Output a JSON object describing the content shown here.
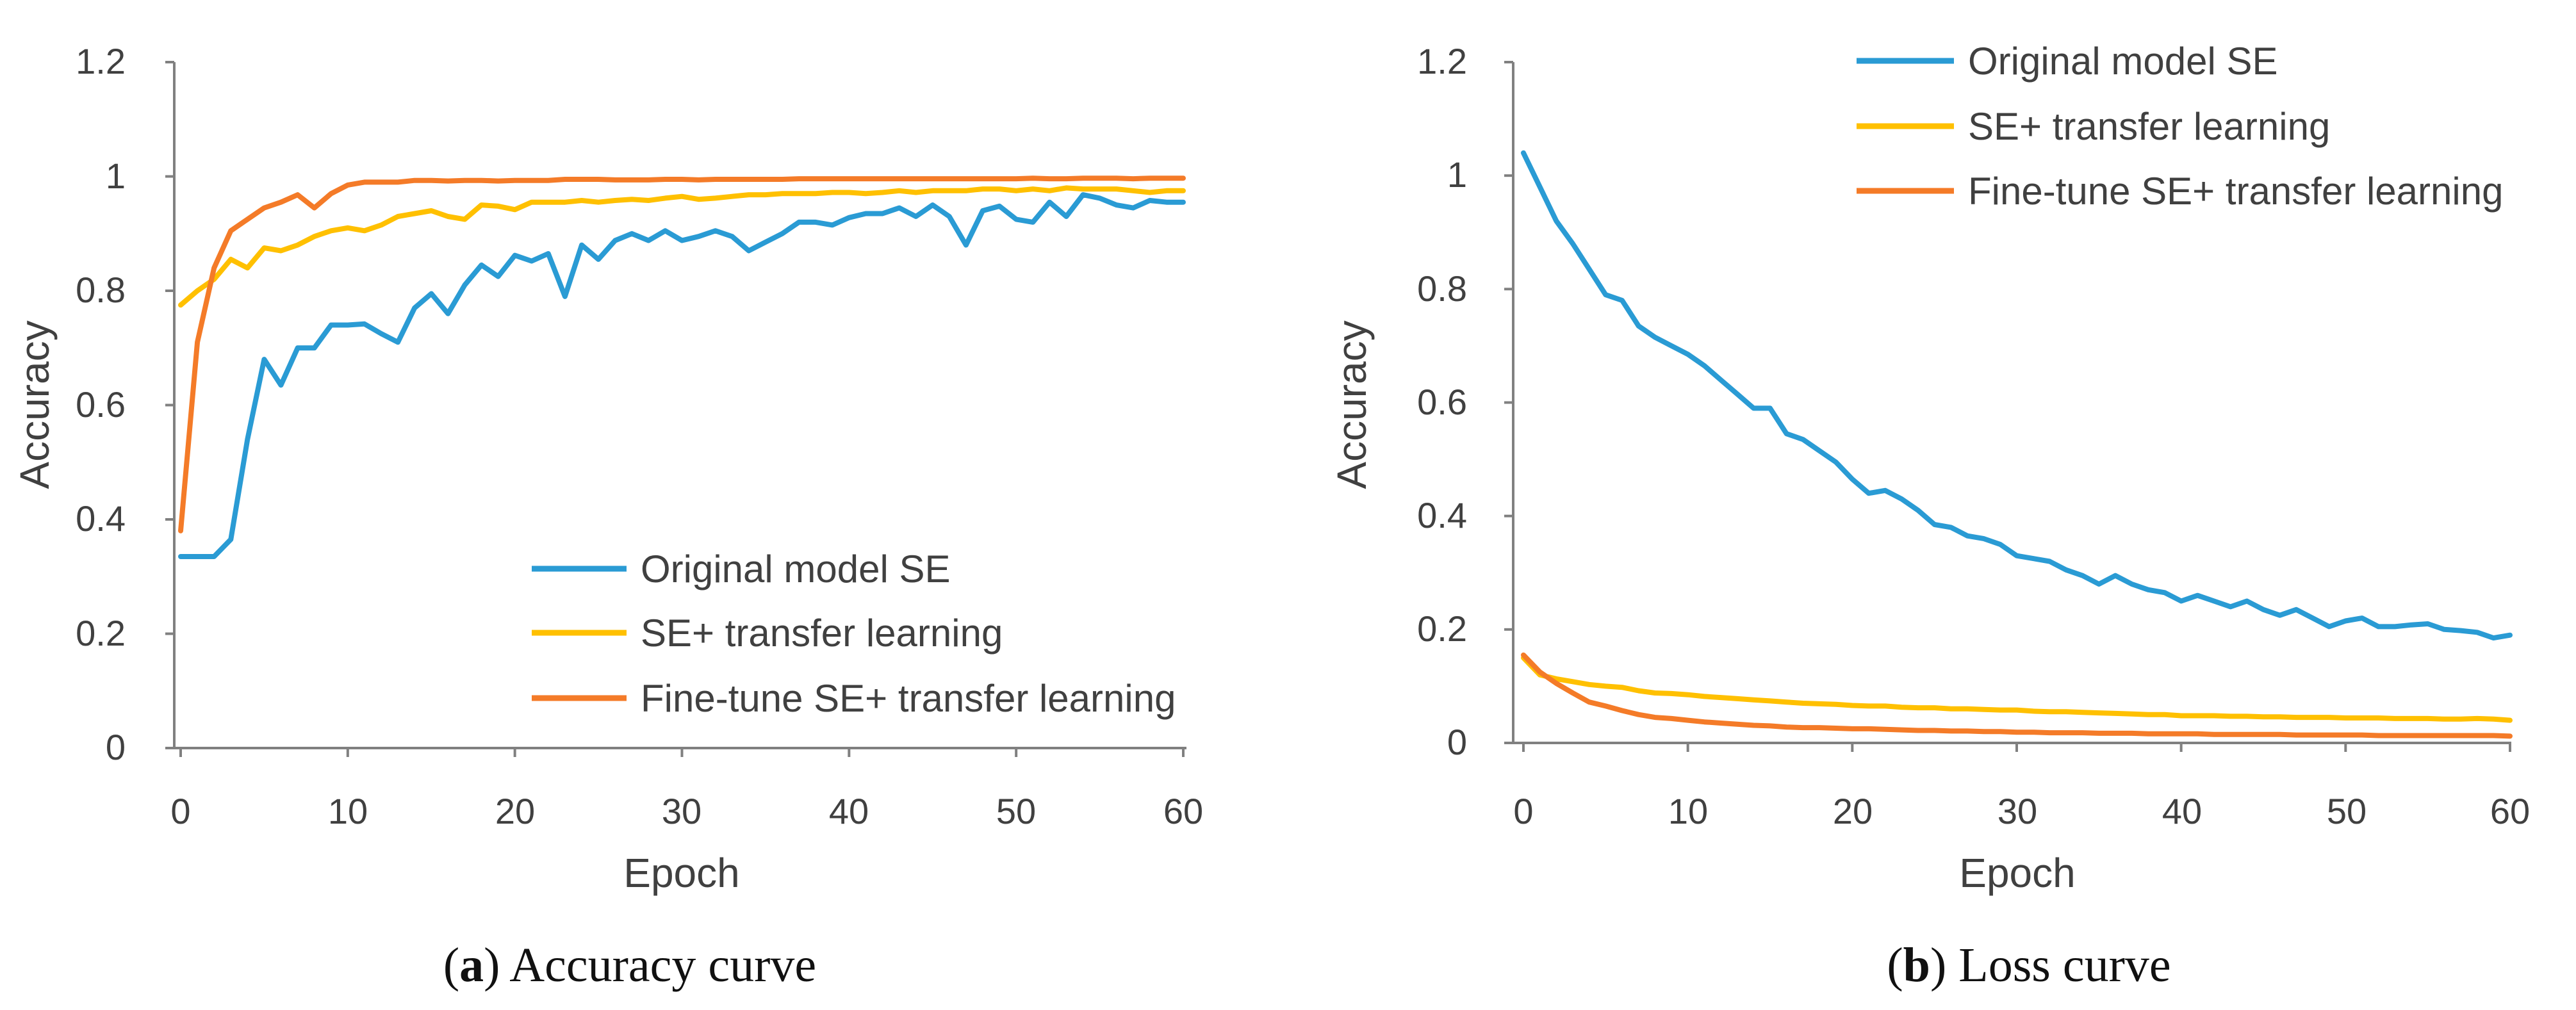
{
  "colors": {
    "original": "#2a9bd4",
    "se_transfer": "#ffc000",
    "finetune": "#f47b28",
    "axis": "#808080",
    "text": "#404040"
  },
  "chart_data": [
    {
      "type": "line",
      "caption_letter": "a",
      "caption_text": " Accuracy curve",
      "xlabel": "Epoch",
      "ylabel": "Accuracy",
      "xlim": [
        0,
        60
      ],
      "ylim": [
        0,
        1.2
      ],
      "xticks": [
        0,
        10,
        20,
        30,
        40,
        50,
        60
      ],
      "yticks": [
        0,
        0.2,
        0.4,
        0.6,
        0.8,
        1,
        1.2
      ],
      "ytick_labels": [
        "0",
        "0.2",
        "0.4",
        "0.6",
        "0.8",
        "1",
        "1.2"
      ],
      "legend_position": "lower-right",
      "grid": false,
      "series": [
        {
          "name": "Original model SE",
          "color_key": "original",
          "x": [
            0,
            1,
            2,
            3,
            4,
            5,
            6,
            7,
            8,
            9,
            10,
            11,
            12,
            13,
            14,
            15,
            16,
            17,
            18,
            19,
            20,
            21,
            22,
            23,
            24,
            25,
            26,
            27,
            28,
            29,
            30,
            31,
            32,
            33,
            34,
            35,
            36,
            37,
            38,
            39,
            40,
            41,
            42,
            43,
            44,
            45,
            46,
            47,
            48,
            49,
            50,
            51,
            52,
            53,
            54,
            55,
            56,
            57,
            58,
            59,
            60
          ],
          "y": [
            0.335,
            0.335,
            0.335,
            0.365,
            0.54,
            0.68,
            0.635,
            0.7,
            0.7,
            0.74,
            0.74,
            0.742,
            0.725,
            0.71,
            0.77,
            0.795,
            0.76,
            0.81,
            0.845,
            0.825,
            0.862,
            0.852,
            0.865,
            0.79,
            0.88,
            0.855,
            0.888,
            0.9,
            0.888,
            0.905,
            0.888,
            0.895,
            0.905,
            0.895,
            0.87,
            0.885,
            0.9,
            0.92,
            0.92,
            0.915,
            0.928,
            0.935,
            0.935,
            0.945,
            0.93,
            0.95,
            0.93,
            0.88,
            0.94,
            0.948,
            0.925,
            0.92,
            0.955,
            0.93,
            0.968,
            0.962,
            0.95,
            0.945,
            0.958,
            0.955,
            0.955
          ]
        },
        {
          "name": "SE+ transfer learning",
          "color_key": "se_transfer",
          "x": [
            0,
            1,
            2,
            3,
            4,
            5,
            6,
            7,
            8,
            9,
            10,
            11,
            12,
            13,
            14,
            15,
            16,
            17,
            18,
            19,
            20,
            21,
            22,
            23,
            24,
            25,
            26,
            27,
            28,
            29,
            30,
            31,
            32,
            33,
            34,
            35,
            36,
            37,
            38,
            39,
            40,
            41,
            42,
            43,
            44,
            45,
            46,
            47,
            48,
            49,
            50,
            51,
            52,
            53,
            54,
            55,
            56,
            57,
            58,
            59,
            60
          ],
          "y": [
            0.775,
            0.8,
            0.82,
            0.855,
            0.84,
            0.875,
            0.87,
            0.88,
            0.895,
            0.905,
            0.91,
            0.905,
            0.915,
            0.93,
            0.935,
            0.94,
            0.93,
            0.925,
            0.95,
            0.948,
            0.942,
            0.955,
            0.955,
            0.955,
            0.958,
            0.955,
            0.958,
            0.96,
            0.958,
            0.962,
            0.965,
            0.96,
            0.962,
            0.965,
            0.968,
            0.968,
            0.97,
            0.97,
            0.97,
            0.972,
            0.972,
            0.97,
            0.972,
            0.975,
            0.972,
            0.975,
            0.975,
            0.975,
            0.978,
            0.978,
            0.975,
            0.978,
            0.975,
            0.98,
            0.978,
            0.978,
            0.978,
            0.975,
            0.972,
            0.975,
            0.975
          ]
        },
        {
          "name": "Fine-tune SE+ transfer learning",
          "color_key": "finetune",
          "x": [
            0,
            1,
            2,
            3,
            4,
            5,
            6,
            7,
            8,
            9,
            10,
            11,
            12,
            13,
            14,
            15,
            16,
            17,
            18,
            19,
            20,
            21,
            22,
            23,
            24,
            25,
            26,
            27,
            28,
            29,
            30,
            31,
            32,
            33,
            34,
            35,
            36,
            37,
            38,
            39,
            40,
            41,
            42,
            43,
            44,
            45,
            46,
            47,
            48,
            49,
            50,
            51,
            52,
            53,
            54,
            55,
            56,
            57,
            58,
            59,
            60
          ],
          "y": [
            0.38,
            0.71,
            0.84,
            0.905,
            0.925,
            0.945,
            0.955,
            0.968,
            0.945,
            0.97,
            0.985,
            0.99,
            0.99,
            0.99,
            0.993,
            0.993,
            0.992,
            0.993,
            0.993,
            0.992,
            0.993,
            0.993,
            0.993,
            0.995,
            0.995,
            0.995,
            0.994,
            0.994,
            0.994,
            0.995,
            0.995,
            0.994,
            0.995,
            0.995,
            0.995,
            0.995,
            0.995,
            0.996,
            0.996,
            0.996,
            0.996,
            0.996,
            0.996,
            0.996,
            0.996,
            0.996,
            0.996,
            0.996,
            0.996,
            0.996,
            0.996,
            0.997,
            0.996,
            0.996,
            0.997,
            0.997,
            0.997,
            0.996,
            0.997,
            0.997,
            0.997
          ]
        }
      ]
    },
    {
      "type": "line",
      "caption_letter": "b",
      "caption_text": " Loss curve",
      "xlabel": "Epoch",
      "ylabel": "Accuracy",
      "xlim": [
        0,
        60
      ],
      "ylim": [
        0,
        1.2
      ],
      "xticks": [
        0,
        10,
        20,
        30,
        40,
        50,
        60
      ],
      "yticks": [
        0,
        0.2,
        0.4,
        0.6,
        0.8,
        1,
        1.2
      ],
      "ytick_labels": [
        "0",
        "0.2",
        "0.4",
        "0.6",
        "0.8",
        "1",
        "1.2"
      ],
      "legend_position": "top-right",
      "grid": false,
      "series": [
        {
          "name": "Original model SE",
          "color_key": "original",
          "x": [
            0,
            1,
            2,
            3,
            4,
            5,
            6,
            7,
            8,
            9,
            10,
            11,
            12,
            13,
            14,
            15,
            16,
            17,
            18,
            19,
            20,
            21,
            22,
            23,
            24,
            25,
            26,
            27,
            28,
            29,
            30,
            31,
            32,
            33,
            34,
            35,
            36,
            37,
            38,
            39,
            40,
            41,
            42,
            43,
            44,
            45,
            46,
            47,
            48,
            49,
            50,
            51,
            52,
            53,
            54,
            55,
            56,
            57,
            58,
            59,
            60
          ],
          "y": [
            1.04,
            0.98,
            0.92,
            0.88,
            0.835,
            0.79,
            0.78,
            0.735,
            0.715,
            0.7,
            0.685,
            0.665,
            0.64,
            0.615,
            0.59,
            0.59,
            0.545,
            0.535,
            0.515,
            0.495,
            0.465,
            0.44,
            0.445,
            0.43,
            0.41,
            0.385,
            0.38,
            0.365,
            0.36,
            0.35,
            0.33,
            0.325,
            0.32,
            0.305,
            0.295,
            0.28,
            0.295,
            0.28,
            0.27,
            0.265,
            0.25,
            0.26,
            0.25,
            0.24,
            0.25,
            0.235,
            0.225,
            0.235,
            0.22,
            0.205,
            0.215,
            0.22,
            0.205,
            0.205,
            0.208,
            0.21,
            0.2,
            0.198,
            0.195,
            0.185,
            0.19
          ]
        },
        {
          "name": "SE+ transfer learning",
          "color_key": "se_transfer",
          "x": [
            0,
            1,
            2,
            3,
            4,
            5,
            6,
            7,
            8,
            9,
            10,
            11,
            12,
            13,
            14,
            15,
            16,
            17,
            18,
            19,
            20,
            21,
            22,
            23,
            24,
            25,
            26,
            27,
            28,
            29,
            30,
            31,
            32,
            33,
            34,
            35,
            36,
            37,
            38,
            39,
            40,
            41,
            42,
            43,
            44,
            45,
            46,
            47,
            48,
            49,
            50,
            51,
            52,
            53,
            54,
            55,
            56,
            57,
            58,
            59,
            60
          ],
          "y": [
            0.15,
            0.12,
            0.113,
            0.108,
            0.103,
            0.1,
            0.098,
            0.092,
            0.088,
            0.087,
            0.085,
            0.082,
            0.08,
            0.078,
            0.076,
            0.074,
            0.072,
            0.07,
            0.069,
            0.068,
            0.066,
            0.065,
            0.065,
            0.063,
            0.062,
            0.062,
            0.06,
            0.06,
            0.059,
            0.058,
            0.058,
            0.056,
            0.055,
            0.055,
            0.054,
            0.053,
            0.052,
            0.051,
            0.05,
            0.05,
            0.048,
            0.048,
            0.048,
            0.047,
            0.047,
            0.046,
            0.046,
            0.045,
            0.045,
            0.045,
            0.044,
            0.044,
            0.044,
            0.043,
            0.043,
            0.043,
            0.042,
            0.042,
            0.043,
            0.042,
            0.04
          ]
        },
        {
          "name": "Fine-tune SE+ transfer learning",
          "color_key": "finetune",
          "x": [
            0,
            1,
            2,
            3,
            4,
            5,
            6,
            7,
            8,
            9,
            10,
            11,
            12,
            13,
            14,
            15,
            16,
            17,
            18,
            19,
            20,
            21,
            22,
            23,
            24,
            25,
            26,
            27,
            28,
            29,
            30,
            31,
            32,
            33,
            34,
            35,
            36,
            37,
            38,
            39,
            40,
            41,
            42,
            43,
            44,
            45,
            46,
            47,
            48,
            49,
            50,
            51,
            52,
            53,
            54,
            55,
            56,
            57,
            58,
            59,
            60
          ],
          "y": [
            0.155,
            0.125,
            0.105,
            0.088,
            0.072,
            0.065,
            0.057,
            0.05,
            0.045,
            0.043,
            0.04,
            0.037,
            0.035,
            0.033,
            0.031,
            0.03,
            0.028,
            0.027,
            0.027,
            0.026,
            0.025,
            0.025,
            0.024,
            0.023,
            0.022,
            0.022,
            0.021,
            0.021,
            0.02,
            0.02,
            0.019,
            0.019,
            0.018,
            0.018,
            0.018,
            0.017,
            0.017,
            0.017,
            0.016,
            0.016,
            0.016,
            0.016,
            0.015,
            0.015,
            0.015,
            0.015,
            0.015,
            0.014,
            0.014,
            0.014,
            0.014,
            0.014,
            0.013,
            0.013,
            0.013,
            0.013,
            0.013,
            0.013,
            0.013,
            0.013,
            0.012
          ]
        }
      ]
    }
  ]
}
